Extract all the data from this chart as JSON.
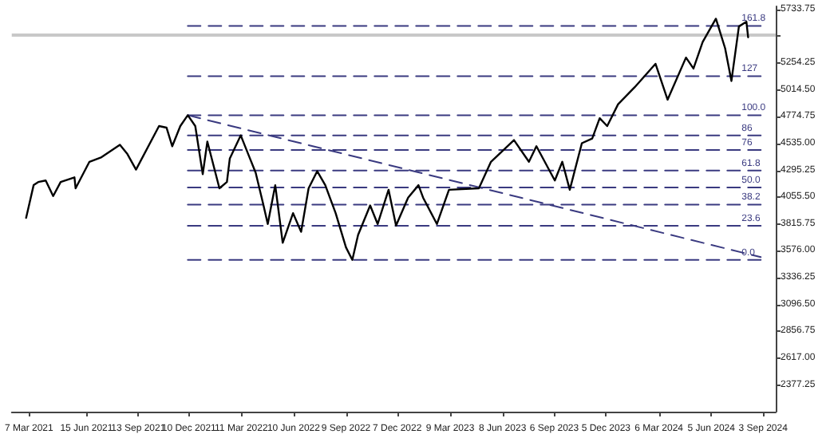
{
  "chart_data": {
    "type": "line",
    "marker": "none",
    "legend": false,
    "grid": false,
    "xlim": [
      "2021-02-05",
      "2024-09-25"
    ],
    "ylim": [
      2140,
      5760
    ],
    "xticks": [
      {
        "value": "2021-03-07",
        "label": "7 Mar 2021"
      },
      {
        "value": "2021-06-15",
        "label": "15 Jun 2021"
      },
      {
        "value": "2021-09-13",
        "label": "13 Sep 2021"
      },
      {
        "value": "2021-12-10",
        "label": "10 Dec 2021"
      },
      {
        "value": "2022-03-11",
        "label": "11 Mar 2022"
      },
      {
        "value": "2022-06-10",
        "label": "10 Jun 2022"
      },
      {
        "value": "2022-09-09",
        "label": "9 Sep 2022"
      },
      {
        "value": "2022-12-07",
        "label": "7 Dec 2022"
      },
      {
        "value": "2023-03-09",
        "label": "9 Mar 2023"
      },
      {
        "value": "2023-06-08",
        "label": "8 Jun 2023"
      },
      {
        "value": "2023-09-06",
        "label": "6 Sep 2023"
      },
      {
        "value": "2023-12-05",
        "label": "5 Dec 2023"
      },
      {
        "value": "2024-03-06",
        "label": "6 Mar 2024"
      },
      {
        "value": "2024-06-05",
        "label": "5 Jun 2024"
      },
      {
        "value": "2024-09-03",
        "label": "3 Sep 2024"
      }
    ],
    "yticks": [
      {
        "value": 2377.25,
        "label": "2377.25"
      },
      {
        "value": 2617,
        "label": "2617.00"
      },
      {
        "value": 2856.75,
        "label": "2856.75"
      },
      {
        "value": 3096.5,
        "label": "3096.50"
      },
      {
        "value": 3336.25,
        "label": "3336.25"
      },
      {
        "value": 3576,
        "label": "3576.00"
      },
      {
        "value": 3815.75,
        "label": "3815.75"
      },
      {
        "value": 4055.5,
        "label": "4055.50"
      },
      {
        "value": 4295.25,
        "label": "4295.25"
      },
      {
        "value": 4535,
        "label": "4535.00"
      },
      {
        "value": 4774.75,
        "label": "4774.75"
      },
      {
        "value": 5014.5,
        "label": "5014.50"
      },
      {
        "value": 5254.25,
        "label": "5254.25"
      },
      {
        "value": 5494,
        "label": null
      },
      {
        "value": 5733.75,
        "label": "5733.75"
      }
    ],
    "ref_lines": [
      {
        "axis": "y",
        "value": 5511,
        "color": "#c8c8c8"
      }
    ],
    "series": [
      {
        "color": "#000000",
        "line_style": "solid",
        "x": [
          "2021-03-02",
          "2021-03-15",
          "2021-03-23",
          "2021-04-05",
          "2021-04-18",
          "2021-05-01",
          "2021-05-25",
          "2021-05-27",
          "2021-06-20",
          "2021-07-11",
          "2021-08-12",
          "2021-08-25",
          "2021-09-09",
          "2021-10-19",
          "2021-11-01",
          "2021-11-11",
          "2021-11-25",
          "2021-12-08",
          "2021-12-21",
          "2022-01-03",
          "2022-01-11",
          "2022-02-01",
          "2022-02-14",
          "2022-02-19",
          "2022-03-10",
          "2022-03-23",
          "2022-04-05",
          "2022-04-18",
          "2022-04-26",
          "2022-05-09",
          "2022-05-22",
          "2022-06-09",
          "2022-06-23",
          "2022-07-06",
          "2022-07-21",
          "2022-08-04",
          "2022-08-22",
          "2022-09-09",
          "2022-09-20",
          "2022-09-30",
          "2022-10-21",
          "2022-11-03",
          "2022-11-22",
          "2022-12-05",
          "2022-12-26",
          "2023-01-13",
          "2023-01-21",
          "2023-02-14",
          "2023-03-07",
          "2023-04-28",
          "2023-05-19",
          "2023-06-28",
          "2023-07-24",
          "2023-08-06",
          "2023-09-07",
          "2023-09-20",
          "2023-10-03",
          "2023-10-24",
          "2023-11-11",
          "2023-11-24",
          "2023-12-07",
          "2023-12-26",
          "2024-01-24",
          "2024-02-29",
          "2024-03-21",
          "2024-04-22",
          "2024-05-05",
          "2024-05-21",
          "2024-06-13",
          "2024-06-29",
          "2024-07-10",
          "2024-07-23",
          "2024-08-05",
          "2024-08-08"
        ],
        "values": [
          3871,
          4163,
          4191,
          4205,
          4066,
          4191,
          4233,
          4135,
          4372,
          4413,
          4524,
          4441,
          4302,
          4691,
          4677,
          4511,
          4691,
          4788,
          4691,
          4261,
          4552,
          4135,
          4191,
          4400,
          4608,
          4441,
          4274,
          3996,
          3816,
          4163,
          3648,
          3913,
          3746,
          4135,
          4288,
          4163,
          3913,
          3607,
          3496,
          3718,
          3982,
          3816,
          4122,
          3802,
          4052,
          4163,
          4052,
          3816,
          4122,
          4135,
          4372,
          4566,
          4372,
          4511,
          4205,
          4372,
          4122,
          4538,
          4580,
          4761,
          4691,
          4886,
          5039,
          5247,
          4927,
          5303,
          5205,
          5442,
          5650,
          5386,
          5094,
          5581,
          5623,
          5484
        ]
      },
      {
        "color": "#3a3a80",
        "line_style": "dashed",
        "x": [
          "2021-12-08",
          "2024-08-30"
        ],
        "values": [
          4788,
          3520
        ]
      },
      {
        "name": "161.8",
        "color": "#3a3a80",
        "line_style": "dashed",
        "x": [
          "2021-12-08",
          "2024-08-30"
        ],
        "values": [
          5586,
          5586
        ]
      },
      {
        "name": "127",
        "color": "#3a3a80",
        "line_style": "dashed",
        "x": [
          "2021-12-08",
          "2024-08-30"
        ],
        "values": [
          5137,
          5137
        ]
      },
      {
        "name": "100.0",
        "color": "#3a3a80",
        "line_style": "dashed",
        "x": [
          "2021-12-08",
          "2024-08-30"
        ],
        "values": [
          4788,
          4788
        ]
      },
      {
        "name": "86",
        "color": "#3a3a80",
        "line_style": "dashed",
        "x": [
          "2021-12-08",
          "2024-08-30"
        ],
        "values": [
          4607,
          4607
        ]
      },
      {
        "name": "76",
        "color": "#3a3a80",
        "line_style": "dashed",
        "x": [
          "2021-12-08",
          "2024-08-30"
        ],
        "values": [
          4478,
          4478
        ]
      },
      {
        "name": "61.8",
        "color": "#3a3a80",
        "line_style": "dashed",
        "x": [
          "2021-12-08",
          "2024-08-30"
        ],
        "values": [
          4294,
          4294
        ]
      },
      {
        "name": "50.0",
        "color": "#3a3a80",
        "line_style": "dashed",
        "x": [
          "2021-12-08",
          "2024-08-30"
        ],
        "values": [
          4142,
          4142
        ]
      },
      {
        "name": "38.2",
        "color": "#3a3a80",
        "line_style": "dashed",
        "x": [
          "2021-12-08",
          "2024-08-30"
        ],
        "values": [
          3990,
          3990
        ]
      },
      {
        "name": "23.6",
        "color": "#3a3a80",
        "line_style": "dashed",
        "x": [
          "2021-12-08",
          "2024-08-30"
        ],
        "values": [
          3801,
          3801
        ]
      },
      {
        "name": "0.0",
        "color": "#3a3a80",
        "line_style": "dashed",
        "x": [
          "2021-12-08",
          "2024-08-30"
        ],
        "values": [
          3496,
          3496
        ]
      }
    ]
  }
}
